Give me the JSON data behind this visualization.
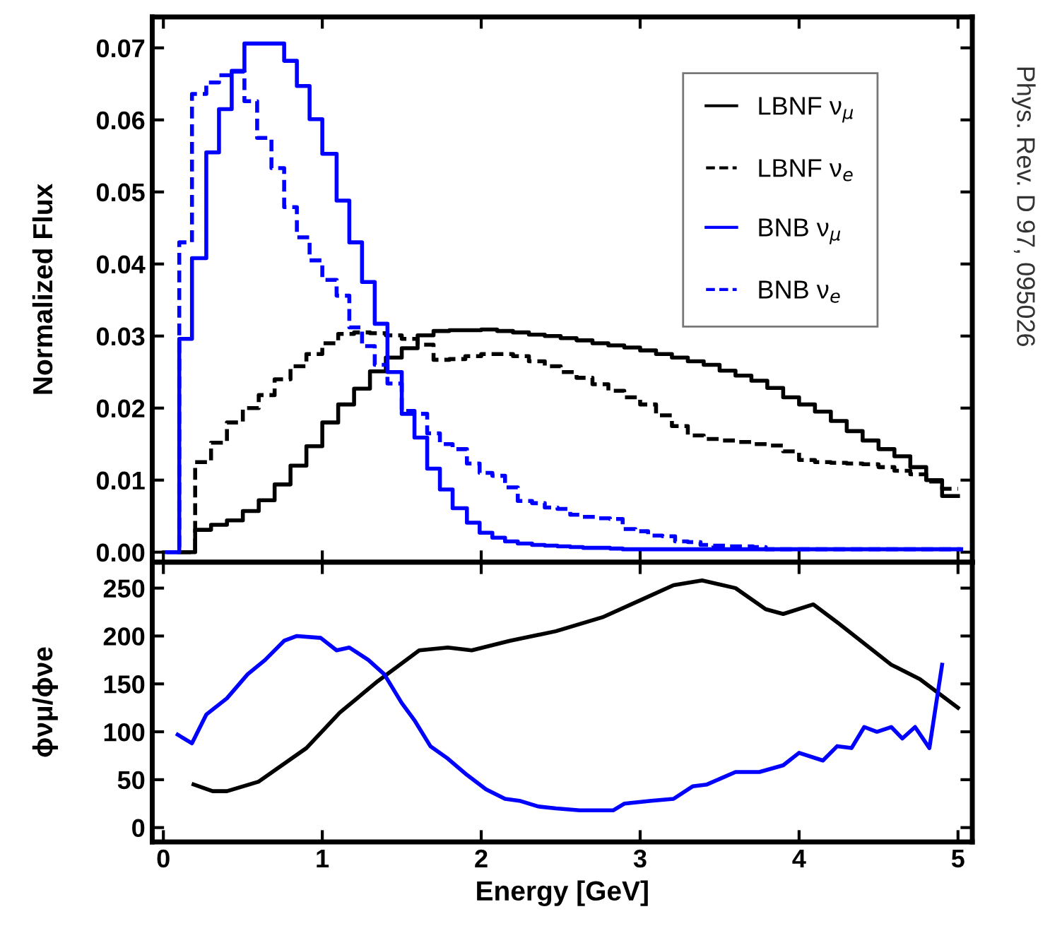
{
  "chart_data": [
    {
      "type": "step",
      "ylabel": "Normalized Flux",
      "xlim": [
        -0.07,
        5.09
      ],
      "ylim": [
        -0.0014,
        0.0743
      ],
      "xticks": [
        0,
        1,
        2,
        3,
        4,
        5
      ],
      "yticks": [
        {
          "value": 0,
          "label": "0.00"
        },
        {
          "value": 0.01,
          "label": "0.01"
        },
        {
          "value": 0.02,
          "label": "0.02"
        },
        {
          "value": 0.03,
          "label": "0.03"
        },
        {
          "value": 0.04,
          "label": "0.04"
        },
        {
          "value": 0.05,
          "label": "0.05"
        },
        {
          "value": 0.06,
          "label": "0.06"
        },
        {
          "value": 0.07,
          "label": "0.07"
        }
      ],
      "tick_labels": "y",
      "legend": "top right",
      "grid": false,
      "annotations": [
        "Phys. Rev. D 97, 095026"
      ],
      "series": [
        {
          "name": "LBNF ν$_{μ}$",
          "color": "#000000",
          "line_style": "solid",
          "x": [
            0.1,
            0.2,
            0.3,
            0.4,
            0.5,
            0.6,
            0.7,
            0.8,
            0.9,
            1.0,
            1.1,
            1.2,
            1.3,
            1.4,
            1.5,
            1.6,
            1.7,
            1.8,
            1.9,
            2.0,
            2.1,
            2.2,
            2.3,
            2.4,
            2.5,
            2.6,
            2.7,
            2.8,
            2.9,
            3.0,
            3.1,
            3.2,
            3.3,
            3.4,
            3.5,
            3.6,
            3.7,
            3.8,
            3.9,
            4.0,
            4.1,
            4.2,
            4.3,
            4.4,
            4.5,
            4.6,
            4.7,
            4.8,
            4.9,
            5.0
          ],
          "values": [
            0,
            0.0031,
            0.0038,
            0.0044,
            0.0057,
            0.0072,
            0.0094,
            0.012,
            0.0147,
            0.018,
            0.0205,
            0.0227,
            0.0251,
            0.027,
            0.0283,
            0.0301,
            0.0307,
            0.0308,
            0.0308,
            0.0309,
            0.0307,
            0.0305,
            0.0302,
            0.03,
            0.0297,
            0.0294,
            0.029,
            0.0287,
            0.0284,
            0.028,
            0.0275,
            0.027,
            0.0265,
            0.026,
            0.0252,
            0.0245,
            0.0238,
            0.0228,
            0.0215,
            0.0205,
            0.0195,
            0.0182,
            0.0168,
            0.0155,
            0.0143,
            0.0133,
            0.0118,
            0.01,
            0.0078,
            0.0078
          ]
        },
        {
          "name": "LBNF ν$_{e}$",
          "color": "#000000",
          "line_style": "dashed",
          "x": [
            0.1,
            0.2,
            0.3,
            0.4,
            0.5,
            0.6,
            0.7,
            0.8,
            0.9,
            1.0,
            1.1,
            1.2,
            1.3,
            1.4,
            1.5,
            1.6,
            1.7,
            1.8,
            1.9,
            2.0,
            2.1,
            2.2,
            2.3,
            2.4,
            2.5,
            2.6,
            2.7,
            2.8,
            2.9,
            3.0,
            3.1,
            3.2,
            3.3,
            3.4,
            3.5,
            3.6,
            3.7,
            3.8,
            3.9,
            4.0,
            4.1,
            4.2,
            4.3,
            4.4,
            4.5,
            4.6,
            4.7,
            4.8,
            4.9,
            5.0
          ],
          "values": [
            0,
            0.0125,
            0.0152,
            0.018,
            0.02,
            0.0218,
            0.024,
            0.0258,
            0.0275,
            0.029,
            0.0303,
            0.0305,
            0.0304,
            0.0301,
            0.0296,
            0.0288,
            0.0267,
            0.0268,
            0.0272,
            0.0275,
            0.0275,
            0.0272,
            0.0265,
            0.0258,
            0.025,
            0.0242,
            0.0233,
            0.0224,
            0.0215,
            0.0205,
            0.019,
            0.0175,
            0.0162,
            0.0157,
            0.0155,
            0.0153,
            0.015,
            0.0148,
            0.014,
            0.0128,
            0.0125,
            0.0124,
            0.0123,
            0.0122,
            0.0118,
            0.0113,
            0.0108,
            0.0098,
            0.0088,
            0.0088
          ]
        },
        {
          "name": "BNB ν$_{μ}$",
          "color": "#0000ff",
          "line_style": "solid",
          "x": [
            0.02,
            0.1,
            0.18,
            0.27,
            0.35,
            0.43,
            0.51,
            0.59,
            0.68,
            0.76,
            0.84,
            0.92,
            1.0,
            1.09,
            1.17,
            1.25,
            1.33,
            1.41,
            1.5,
            1.58,
            1.66,
            1.74,
            1.82,
            1.91,
            1.99,
            2.07,
            2.15,
            2.23,
            2.32,
            2.4,
            2.48,
            2.56,
            2.64,
            2.73,
            2.81,
            2.89,
            2.97,
            3.05,
            3.14,
            3.22,
            3.3,
            3.38,
            3.46,
            3.55,
            3.63,
            3.71,
            3.79,
            3.87,
            3.96,
            4.04,
            4.12,
            4.2,
            4.28,
            4.37,
            4.45,
            4.53,
            4.61,
            4.69,
            4.78,
            4.86,
            4.94,
            5.02
          ],
          "values": [
            0,
            0.0296,
            0.0408,
            0.0555,
            0.0615,
            0.0668,
            0.0706,
            0.0706,
            0.0706,
            0.0682,
            0.0647,
            0.0601,
            0.0553,
            0.0488,
            0.043,
            0.0375,
            0.0317,
            0.025,
            0.0192,
            0.0159,
            0.0116,
            0.0087,
            0.0061,
            0.0041,
            0.0027,
            0.002,
            0.0015,
            0.0012,
            0.001,
            0.0009,
            0.0008,
            0.0007,
            0.0006,
            0.0006,
            0.0005,
            0.0004,
            0.0004,
            0.0004,
            0.0004,
            0.0004,
            0.0004,
            0.0004,
            0.0004,
            0.0004,
            0.0004,
            0.0004,
            0.0004,
            0.0004,
            0.0004,
            0.0004,
            0.0004,
            0.0004,
            0.0004,
            0.0004,
            0.0004,
            0.0004,
            0.0004,
            0.0004,
            0.0004,
            0.0004,
            0.0004,
            0.0004
          ]
        },
        {
          "name": "BNB ν$_{e}$",
          "color": "#0000ff",
          "line_style": "dashed",
          "x": [
            0.02,
            0.1,
            0.18,
            0.27,
            0.35,
            0.43,
            0.51,
            0.59,
            0.68,
            0.76,
            0.84,
            0.92,
            1.0,
            1.09,
            1.17,
            1.25,
            1.33,
            1.41,
            1.5,
            1.58,
            1.66,
            1.74,
            1.82,
            1.91,
            1.99,
            2.07,
            2.15,
            2.23,
            2.32,
            2.4,
            2.48,
            2.56,
            2.64,
            2.73,
            2.81,
            2.89,
            2.97,
            3.05,
            3.14,
            3.22,
            3.3,
            3.38,
            3.46,
            3.55,
            3.63,
            3.71,
            3.79,
            3.87,
            3.96,
            4.04,
            4.12,
            4.2,
            4.28,
            4.37,
            4.45,
            4.53,
            4.61,
            4.69,
            4.78,
            4.86,
            4.94,
            5.02
          ],
          "values": [
            0,
            0.043,
            0.0636,
            0.0652,
            0.0662,
            0.0667,
            0.0626,
            0.0575,
            0.0533,
            0.0479,
            0.0437,
            0.0405,
            0.0378,
            0.0356,
            0.0312,
            0.0286,
            0.026,
            0.0234,
            0.0196,
            0.0192,
            0.0165,
            0.015,
            0.0143,
            0.0123,
            0.011,
            0.0106,
            0.009,
            0.0071,
            0.0068,
            0.0062,
            0.006,
            0.0052,
            0.0049,
            0.0047,
            0.0046,
            0.0032,
            0.0029,
            0.0023,
            0.0022,
            0.0015,
            0.0014,
            0.001,
            0.0009,
            0.0008,
            0.0008,
            0.0007,
            0.0004,
            0.0004,
            0.0004,
            0.0004,
            0.0004,
            0.0004,
            0.0004,
            0.0004,
            0.0004,
            0.0004,
            0.0004,
            0.0004,
            0.0004,
            0.0004,
            0.0004,
            0.0004
          ]
        }
      ]
    },
    {
      "type": "line",
      "xlabel": "Energy [GeV]",
      "ylabel": "ϕνμ/ϕνe",
      "xlim": [
        -0.07,
        5.09
      ],
      "ylim": [
        -15,
        277
      ],
      "xticks": [
        0,
        1,
        2,
        3,
        4,
        5
      ],
      "yticks": [
        0,
        50,
        100,
        150,
        200,
        250
      ],
      "grid": false,
      "series": [
        {
          "color": "#000000",
          "x": [
            0.19,
            0.31,
            0.4,
            0.6,
            0.9,
            1.11,
            1.35,
            1.61,
            1.79,
            1.94,
            2.18,
            2.47,
            2.77,
            3.01,
            3.21,
            3.39,
            3.6,
            3.79,
            3.9,
            4.09,
            4.25,
            4.58,
            4.76,
            5.0
          ],
          "values": [
            45,
            38,
            38,
            48,
            83,
            120,
            153,
            185,
            188,
            185,
            195,
            205,
            220,
            238,
            253,
            258,
            250,
            228,
            223,
            233,
            213,
            170,
            155,
            125
          ]
        },
        {
          "color": "#0000ff",
          "x": [
            0.09,
            0.18,
            0.27,
            0.4,
            0.53,
            0.64,
            0.76,
            0.84,
            0.99,
            1.09,
            1.17,
            1.29,
            1.39,
            1.5,
            1.58,
            1.68,
            1.79,
            1.91,
            2.03,
            2.15,
            2.24,
            2.36,
            2.47,
            2.62,
            2.83,
            2.9,
            3.07,
            3.21,
            3.33,
            3.42,
            3.6,
            3.75,
            3.9,
            4.0,
            4.15,
            4.24,
            4.33,
            4.41,
            4.49,
            4.58,
            4.65,
            4.73,
            4.82,
            4.9
          ],
          "values": [
            97,
            88,
            118,
            135,
            160,
            175,
            195,
            200,
            198,
            185,
            188,
            175,
            160,
            130,
            112,
            85,
            72,
            55,
            40,
            30,
            28,
            22,
            20,
            18,
            18,
            25,
            28,
            30,
            43,
            45,
            58,
            58,
            65,
            78,
            70,
            85,
            83,
            105,
            100,
            105,
            93,
            105,
            83,
            170
          ]
        }
      ]
    }
  ]
}
